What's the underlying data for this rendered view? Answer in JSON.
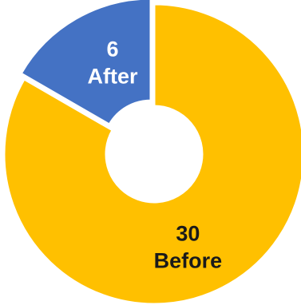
{
  "chart_data": {
    "type": "donut",
    "series": [
      {
        "values": [
          6,
          30
        ],
        "labels": [
          "After",
          "Before"
        ],
        "colors": [
          "#4472C4",
          "#FFC000"
        ]
      }
    ],
    "slices": [
      {
        "name": "After",
        "value": 6,
        "value_label": "6",
        "label": "After",
        "color": "#4472C4",
        "text_color": "#ffffff",
        "exploded": true
      },
      {
        "name": "Before",
        "value": 30,
        "value_label": "30",
        "label": "Before",
        "color": "#FFC000",
        "text_color": "#1a1a1a",
        "exploded": false
      }
    ],
    "start_angle_deg": 0,
    "direction": "clockwise",
    "legend": "none"
  }
}
